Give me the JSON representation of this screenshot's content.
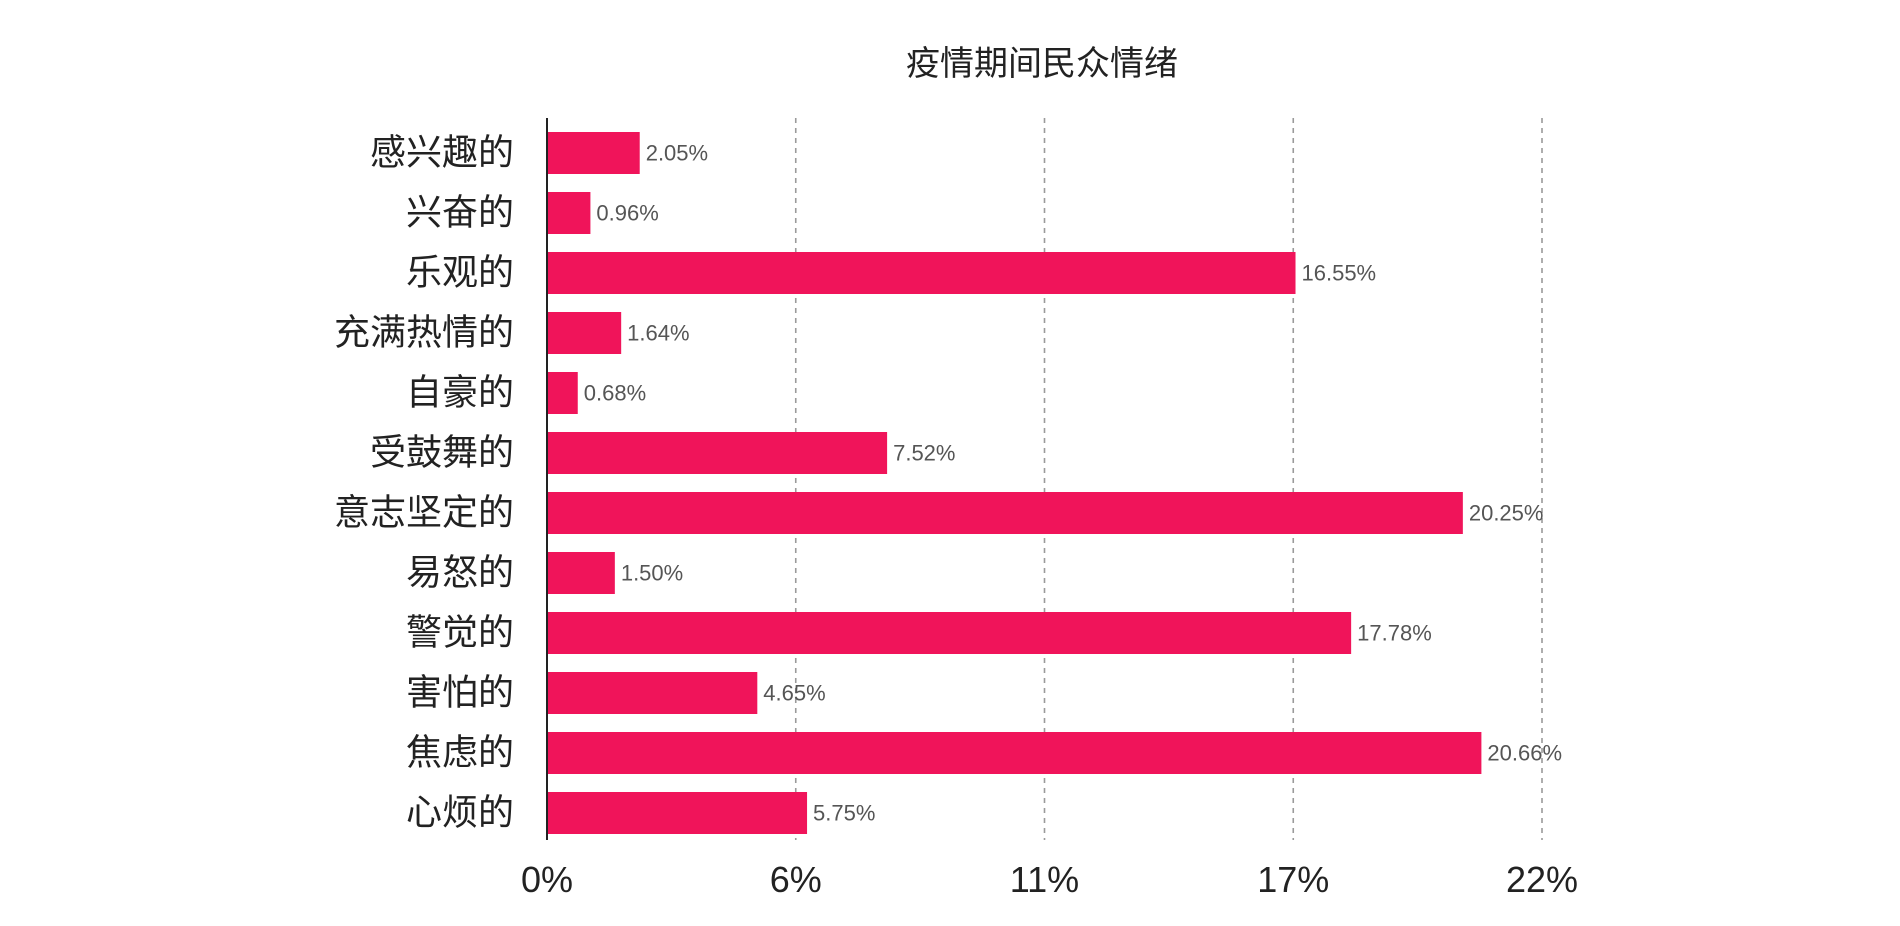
{
  "chart_data": {
    "type": "bar",
    "orientation": "horizontal",
    "title": "疫情期间民众情绪",
    "categories": [
      "感兴趣的",
      "兴奋的",
      "乐观的",
      "充满热情的",
      "自豪的",
      "受鼓舞的",
      "意志坚定的",
      "易怒的",
      "警觉的",
      "害怕的",
      "焦虑的",
      "心烦的"
    ],
    "values": [
      2.05,
      0.96,
      16.55,
      1.64,
      0.68,
      7.52,
      20.25,
      1.5,
      17.78,
      4.65,
      20.66,
      5.75
    ],
    "value_labels": [
      "2.05%",
      "0.96%",
      "16.55%",
      "1.64%",
      "0.68%",
      "7.52%",
      "20.25%",
      "1.50%",
      "17.78%",
      "4.65%",
      "20.66%",
      "5.75%"
    ],
    "xticks": [
      0,
      5.5,
      11,
      16.5,
      22
    ],
    "xtick_labels": [
      "0%",
      "6%",
      "11%",
      "17%",
      "22%"
    ],
    "xlim": [
      0,
      22
    ],
    "xlabel": "",
    "ylabel": "",
    "grid": "vertical dashed",
    "legend": "none",
    "colors": {
      "bar": "#f0145a",
      "axis": "#222222",
      "grid": "#9a9a9a",
      "value_text": "#555555"
    }
  }
}
